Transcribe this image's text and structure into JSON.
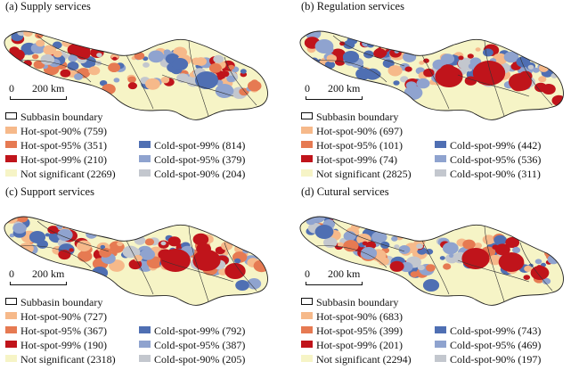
{
  "scale": {
    "zero": "0",
    "distance": "200 km"
  },
  "legend_colors": {
    "hot90": "#f6b98a",
    "hot95": "#e67a52",
    "hot99": "#c0141b",
    "not_significant": "#f6f4c6",
    "cold99": "#4f6fb3",
    "cold95": "#8fa3cf",
    "cold90": "#c3c7ce"
  },
  "boundary_label": "Subbasin boundary",
  "panels": [
    {
      "title": "(a) Supply services",
      "legend": {
        "hot90": "Hot-spot-90% (759)",
        "hot95": "Hot-spot-95% (351)",
        "hot99": "Hot-spot-99% (210)",
        "not_significant": "Not significant (2269)",
        "cold99": "Cold-spot-99% (814)",
        "cold95": "Cold-spot-95% (379)",
        "cold90": "Cold-spot-90% (204)"
      }
    },
    {
      "title": "(b) Regulation services",
      "legend": {
        "hot90": "Hot-spot-90% (697)",
        "hot95": "Hot-spot-95% (101)",
        "hot99": "Hot-spot-99% (74)",
        "not_significant": "Not significant (2825)",
        "cold99": "Cold-spot-99% (442)",
        "cold95": "Cold-spot-95% (536)",
        "cold90": "Cold-spot-90% (311)"
      }
    },
    {
      "title": "(c) Support services",
      "legend": {
        "hot90": "Hot-spot-90% (727)",
        "hot95": "Hot-spot-95% (367)",
        "hot99": "Hot-spot-99% (190)",
        "not_significant": "Not significant (2318)",
        "cold99": "Cold-spot-99% (792)",
        "cold95": "Cold-spot-95% (387)",
        "cold90": "Cold-spot-90% (205)"
      }
    },
    {
      "title": "(d) Cutural services",
      "legend": {
        "hot90": "Hot-spot-90% (683)",
        "hot95": "Hot-spot-95% (399)",
        "hot99": "Hot-spot-99% (201)",
        "not_significant": "Not significant (2294)",
        "cold99": "Cold-spot-99% (743)",
        "cold95": "Cold-spot-95% (469)",
        "cold90": "Cold-spot-90% (197)"
      }
    }
  ]
}
